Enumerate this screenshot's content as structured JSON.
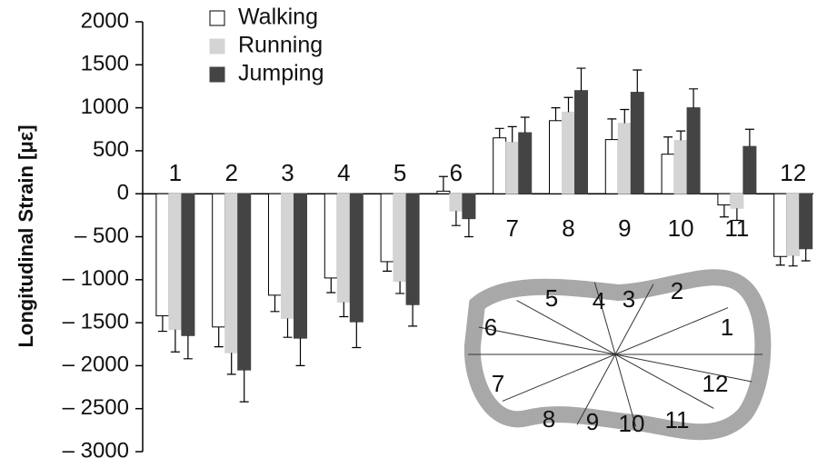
{
  "chart_data": {
    "type": "bar",
    "y_label": "Longitudinal Strain [με]",
    "categories": [
      "1",
      "2",
      "3",
      "4",
      "5",
      "6",
      "7",
      "8",
      "9",
      "10",
      "11",
      "12"
    ],
    "series": [
      {
        "name": "Walking",
        "color": "#ffffff",
        "values": [
          -1420,
          -1550,
          -1180,
          -980,
          -790,
          30,
          650,
          850,
          630,
          460,
          -130,
          -730
        ],
        "errors": [
          180,
          230,
          190,
          170,
          110,
          170,
          110,
          150,
          240,
          200,
          140,
          100
        ]
      },
      {
        "name": "Running",
        "color": "#d4d4d4",
        "values": [
          -1580,
          -1850,
          -1450,
          -1260,
          -1020,
          -200,
          600,
          950,
          820,
          620,
          -170,
          -720
        ],
        "errors": [
          260,
          250,
          220,
          170,
          140,
          170,
          180,
          170,
          160,
          110,
          140,
          120
        ]
      },
      {
        "name": "Jumping",
        "color": "#444444",
        "values": [
          -1650,
          -2050,
          -1680,
          -1490,
          -1290,
          -290,
          710,
          1200,
          1180,
          1000,
          550,
          -640
        ],
        "errors": [
          270,
          370,
          320,
          300,
          250,
          210,
          180,
          260,
          260,
          220,
          200,
          140
        ]
      }
    ],
    "ylim": [
      -3000,
      2000
    ],
    "yticks": [
      {
        "value": -3000,
        "label": "– 3000"
      },
      {
        "value": -2500,
        "label": "– 2500"
      },
      {
        "value": -2000,
        "label": "– 2000"
      },
      {
        "value": -1500,
        "label": "– 1500"
      },
      {
        "value": -1000,
        "label": "– 1000"
      },
      {
        "value": -500,
        "label": "– 500"
      },
      0,
      500,
      1000,
      1500,
      2000
    ]
  },
  "inset": {
    "labels": [
      "1",
      "2",
      "3",
      "4",
      "5",
      "6",
      "7",
      "8",
      "9",
      "10",
      "11",
      "12"
    ]
  }
}
